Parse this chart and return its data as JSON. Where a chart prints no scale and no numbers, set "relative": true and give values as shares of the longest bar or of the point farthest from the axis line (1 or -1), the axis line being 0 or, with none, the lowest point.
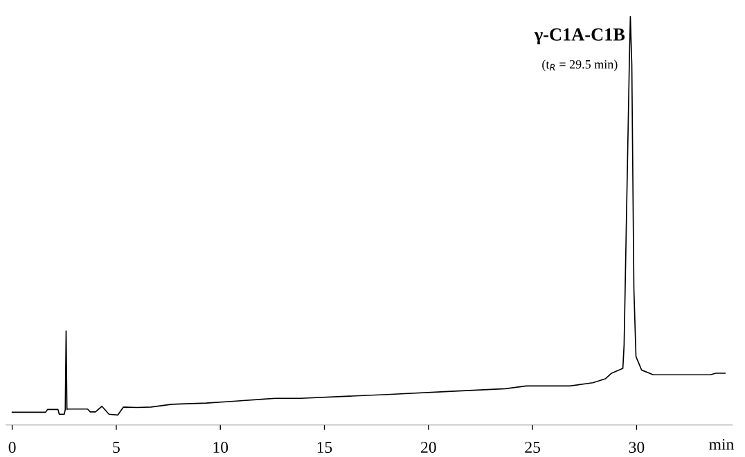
{
  "chart_data": {
    "type": "line",
    "relative": true,
    "color": "#000000",
    "xlabel": "min",
    "annotations": [
      "γ-C1A-C1B",
      "(t$_{R}$ = 29.5 min)"
    ],
    "xlim": [
      -0.3,
      34.6
    ],
    "xticks": [
      0,
      5,
      10,
      15,
      20,
      25,
      30
    ],
    "grid": false,
    "legend": false,
    "marker": "none",
    "line_style": "solid",
    "x": [
      0,
      1.6,
      1.7,
      2.2,
      2.26,
      2.5,
      2.55,
      2.59,
      2.63,
      2.66,
      3.62,
      3.75,
      4.0,
      4.31,
      4.65,
      5.07,
      5.34,
      6.0,
      6.67,
      7.67,
      9.33,
      10.75,
      12.1,
      12.65,
      13.87,
      15.63,
      18.19,
      20.94,
      23.7,
      24.7,
      26.8,
      27.9,
      28.5,
      28.8,
      29.34,
      29.4,
      29.5,
      29.65,
      29.7,
      29.77,
      29.87,
      29.97,
      30.24,
      30.8,
      33.55,
      33.8,
      34.25
    ],
    "values": [
      0.007,
      0.007,
      0.014,
      0.014,
      0.002,
      0.002,
      0.014,
      0.211,
      0.014,
      0.015,
      0.015,
      0.008,
      0.008,
      0.022,
      0.002,
      0.0,
      0.02,
      0.019,
      0.02,
      0.027,
      0.03,
      0.035,
      0.04,
      0.042,
      0.042,
      0.046,
      0.052,
      0.059,
      0.066,
      0.073,
      0.073,
      0.081,
      0.091,
      0.105,
      0.117,
      0.176,
      0.458,
      0.88,
      1.0,
      0.88,
      0.316,
      0.147,
      0.113,
      0.101,
      0.101,
      0.105,
      0.105
    ]
  }
}
